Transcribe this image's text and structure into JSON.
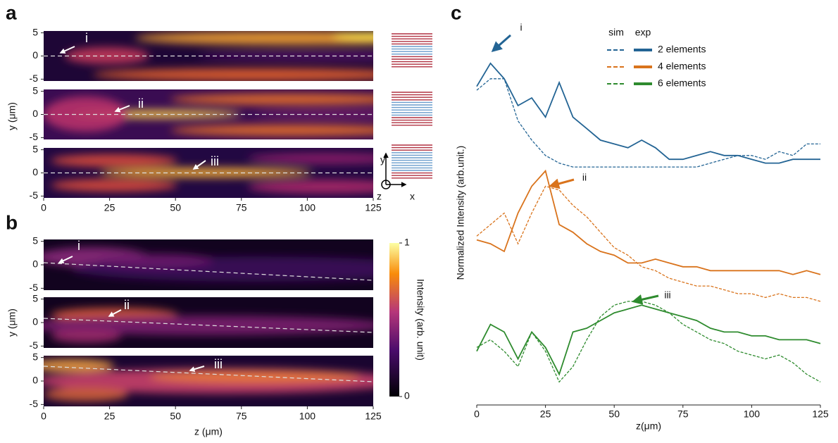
{
  "panels": {
    "a": {
      "label": "a",
      "ylabel": "y (μm)",
      "xlim": [
        0,
        125
      ],
      "ylim": [
        -5.4,
        5.4
      ],
      "xticks": [
        0,
        25,
        50,
        75,
        100,
        125
      ],
      "yticks": [
        5,
        0,
        -5
      ],
      "annotations": [
        "i",
        "ii",
        "iii"
      ],
      "axes_glyph": [
        "y",
        "z",
        "x"
      ]
    },
    "b": {
      "label": "b",
      "ylabel": "y (μm)",
      "xlabel": "z (μm)",
      "xlim": [
        0,
        125
      ],
      "ylim": [
        -5.4,
        5.4
      ],
      "xticks": [
        0,
        25,
        50,
        75,
        100,
        125
      ],
      "yticks": [
        5,
        0,
        -5
      ],
      "annotations": [
        "i",
        "ii",
        "iii"
      ],
      "colorbar": {
        "ticks": [
          0,
          1
        ],
        "label": "Intensity (arb. unit)"
      }
    }
  },
  "chart_data": {
    "type": "line",
    "label": "c",
    "xlabel": "z(μm)",
    "ylabel": "Normalized Intensity (arb.unit.)",
    "xlim": [
      0,
      125
    ],
    "ylim": [
      0,
      1
    ],
    "xticks": [
      0,
      25,
      50,
      75,
      100,
      125
    ],
    "legend_header": [
      "sim",
      "exp"
    ],
    "annotations": [
      "i",
      "ii",
      "iii"
    ],
    "x": [
      0,
      5,
      10,
      15,
      20,
      25,
      30,
      35,
      40,
      45,
      50,
      55,
      60,
      65,
      70,
      75,
      80,
      85,
      90,
      95,
      100,
      105,
      110,
      115,
      120,
      125
    ],
    "series": [
      {
        "name": "2 elements",
        "color": "#236494",
        "sim": [
          0.82,
          0.85,
          0.85,
          0.74,
          0.69,
          0.65,
          0.63,
          0.62,
          0.62,
          0.62,
          0.62,
          0.62,
          0.62,
          0.62,
          0.62,
          0.62,
          0.62,
          0.63,
          0.64,
          0.65,
          0.65,
          0.64,
          0.66,
          0.65,
          0.68,
          0.68
        ],
        "exp": [
          0.83,
          0.89,
          0.85,
          0.78,
          0.8,
          0.75,
          0.84,
          0.75,
          0.72,
          0.69,
          0.68,
          0.67,
          0.69,
          0.67,
          0.64,
          0.64,
          0.65,
          0.66,
          0.65,
          0.65,
          0.64,
          0.63,
          0.63,
          0.64,
          0.64,
          0.64
        ]
      },
      {
        "name": "4 elements",
        "color": "#d9731c",
        "sim": [
          0.44,
          0.47,
          0.5,
          0.42,
          0.5,
          0.57,
          0.56,
          0.52,
          0.49,
          0.45,
          0.41,
          0.39,
          0.36,
          0.35,
          0.33,
          0.32,
          0.31,
          0.31,
          0.3,
          0.29,
          0.29,
          0.28,
          0.29,
          0.28,
          0.28,
          0.27
        ],
        "exp": [
          0.43,
          0.42,
          0.4,
          0.5,
          0.57,
          0.61,
          0.47,
          0.45,
          0.42,
          0.4,
          0.39,
          0.37,
          0.37,
          0.38,
          0.37,
          0.36,
          0.36,
          0.35,
          0.35,
          0.35,
          0.35,
          0.35,
          0.35,
          0.34,
          0.35,
          0.34
        ]
      },
      {
        "name": "6 elements",
        "color": "#2e8b2e",
        "sim": [
          0.15,
          0.17,
          0.14,
          0.1,
          0.19,
          0.14,
          0.06,
          0.1,
          0.17,
          0.23,
          0.26,
          0.27,
          0.27,
          0.26,
          0.24,
          0.21,
          0.19,
          0.17,
          0.16,
          0.14,
          0.13,
          0.12,
          0.13,
          0.11,
          0.08,
          0.06
        ],
        "exp": [
          0.14,
          0.21,
          0.19,
          0.12,
          0.19,
          0.15,
          0.08,
          0.19,
          0.2,
          0.22,
          0.24,
          0.25,
          0.26,
          0.25,
          0.24,
          0.23,
          0.22,
          0.2,
          0.19,
          0.19,
          0.18,
          0.18,
          0.17,
          0.17,
          0.17,
          0.16
        ]
      }
    ]
  }
}
